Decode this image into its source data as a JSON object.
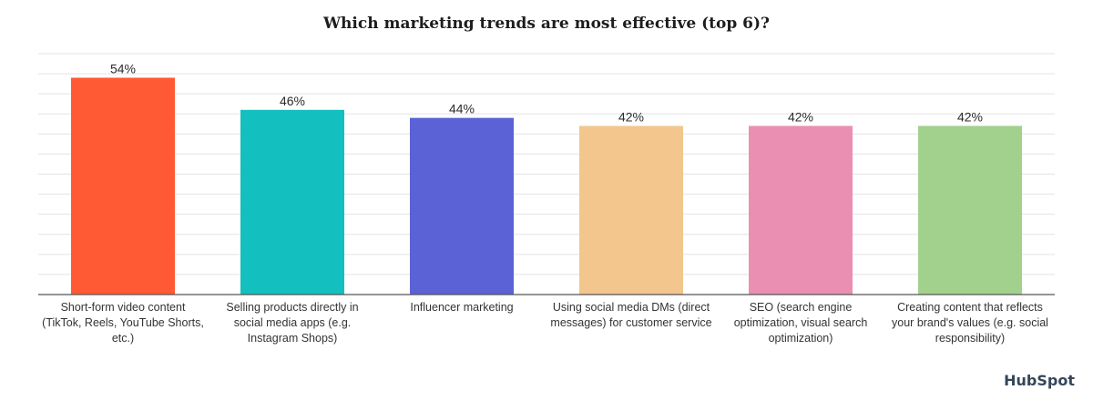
{
  "chart_data": {
    "type": "bar",
    "title": "Which marketing trends are most effective (top 6)?",
    "categories": [
      "Short-form video content (TikTok, Reels, YouTube Shorts, etc.)",
      "Selling products directly in social media apps (e.g. Instagram Shops)",
      "Influencer marketing",
      "Using social media DMs (direct messages) for customer service",
      "SEO (search engine optimization, visual search optimization)",
      "Creating content that reflects your brand's values (e.g. social responsibility)"
    ],
    "values": [
      54,
      46,
      44,
      42,
      42,
      42
    ],
    "value_labels": [
      "54%",
      "46%",
      "44%",
      "42%",
      "42%",
      "42%"
    ],
    "colors": [
      "#ff5a33",
      "#14bfbf",
      "#5b62d6",
      "#f2c68d",
      "#ea8fb2",
      "#a2d18e"
    ],
    "ylim": [
      0,
      60
    ],
    "grid": true,
    "legend": "none"
  },
  "brand": {
    "logo_text": "HubSpot",
    "accent": "#ff7a59"
  }
}
